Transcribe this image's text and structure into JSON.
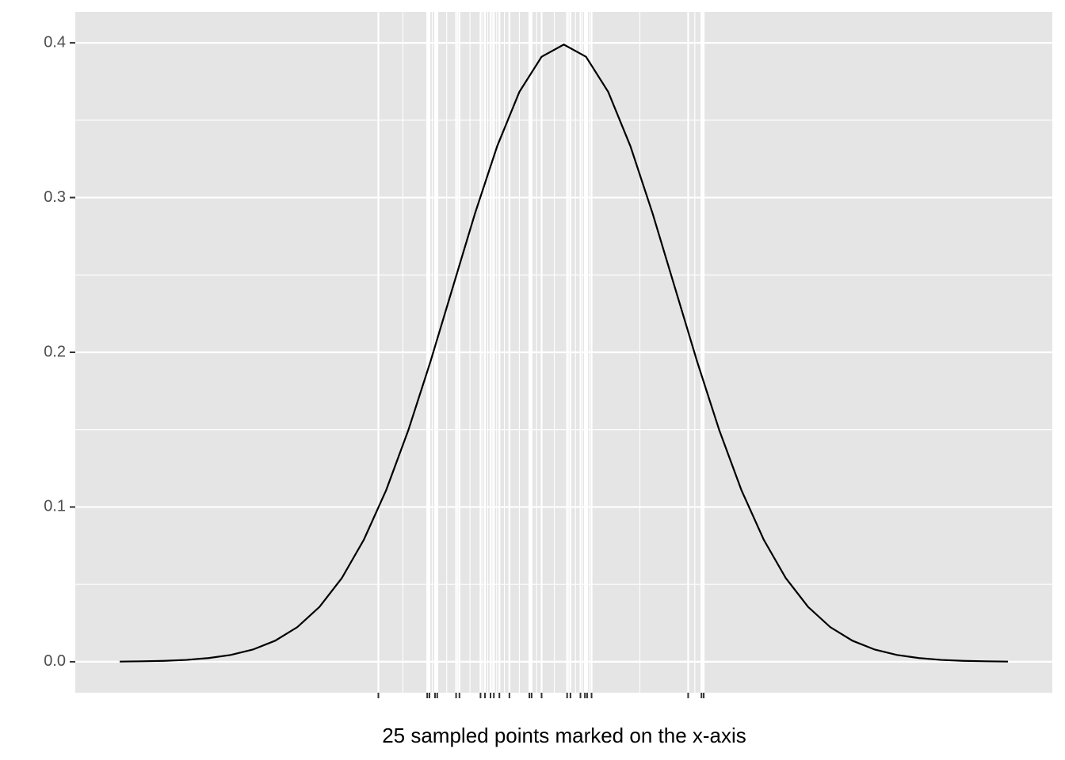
{
  "chart_data": {
    "type": "line",
    "xlabel": "25 sampled points marked on the x-axis",
    "x": [
      -4,
      -3.8,
      -3.6,
      -3.4,
      -3.2,
      -3,
      -2.8,
      -2.6,
      -2.4,
      -2.2,
      -2,
      -1.8,
      -1.6,
      -1.4,
      -1.2,
      -1,
      -0.8,
      -0.6,
      -0.4,
      -0.2,
      0,
      0.2,
      0.4,
      0.6,
      0.8,
      1,
      1.2,
      1.4,
      1.6,
      1.8,
      2,
      2.2,
      2.4,
      2.6,
      2.8,
      3,
      3.2,
      3.4,
      3.6,
      3.8,
      4
    ],
    "values": [
      0.0001,
      0.0003,
      0.0006,
      0.0012,
      0.0024,
      0.0044,
      0.0079,
      0.0136,
      0.0224,
      0.0355,
      0.054,
      0.079,
      0.1109,
      0.1497,
      0.1942,
      0.242,
      0.2897,
      0.3332,
      0.3683,
      0.391,
      0.3989,
      0.391,
      0.3683,
      0.3332,
      0.2897,
      0.242,
      0.1942,
      0.1497,
      0.1109,
      0.079,
      0.054,
      0.0355,
      0.0224,
      0.0136,
      0.0079,
      0.0044,
      0.0024,
      0.0012,
      0.0006,
      0.0003,
      0.0001
    ],
    "color": "#000000",
    "xlim": [
      -4.4,
      4.4
    ],
    "xticks": [
      -1.67,
      -1.23,
      -1.21,
      -1.16,
      -1.14,
      -0.97,
      -0.94,
      -0.75,
      -0.71,
      -0.66,
      -0.63,
      -0.58,
      -0.49,
      -0.31,
      -0.29,
      -0.2,
      0.03,
      0.06,
      0.15,
      0.19,
      0.21,
      0.25,
      1.12,
      1.24,
      1.26
    ],
    "ylim": [
      -0.02,
      0.42
    ],
    "yticks": [
      {
        "value": 0,
        "label": "0.0"
      },
      0.1,
      0.2,
      0.3,
      0.4
    ],
    "grid": true
  }
}
